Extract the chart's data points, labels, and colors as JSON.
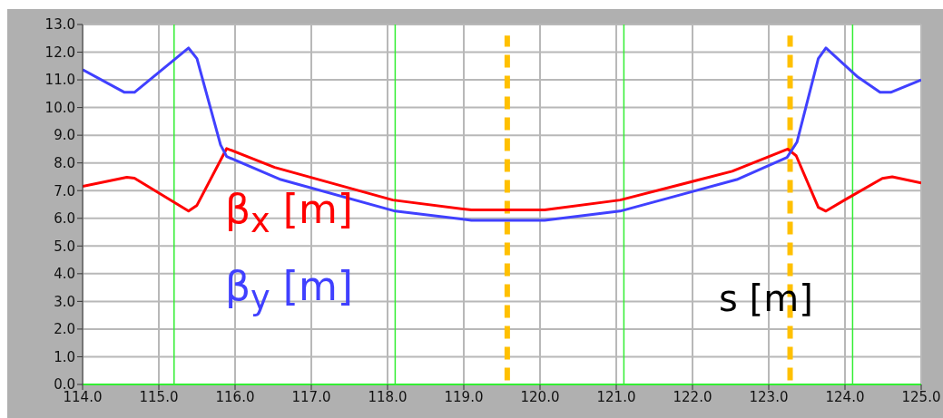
{
  "chart_data": {
    "type": "line",
    "xlabel": "s [m]",
    "xlim": [
      114,
      125
    ],
    "xticks": [
      {
        "value": 114,
        "label": "114.0"
      },
      {
        "value": 115,
        "label": "115.0"
      },
      {
        "value": 116,
        "label": "116.0"
      },
      {
        "value": 117,
        "label": "117.0"
      },
      {
        "value": 118,
        "label": "118.0"
      },
      {
        "value": 119,
        "label": "119.0"
      },
      {
        "value": 120,
        "label": "120.0"
      },
      {
        "value": 121,
        "label": "121.0"
      },
      {
        "value": 122,
        "label": "122.0"
      },
      {
        "value": 123,
        "label": "123.0"
      },
      {
        "value": 124,
        "label": "124.0"
      },
      {
        "value": 125,
        "label": "125.0"
      }
    ],
    "ylim": [
      0,
      13
    ],
    "yticks": [
      {
        "value": 0,
        "label": "0.0"
      },
      {
        "value": 1,
        "label": "1.0"
      },
      {
        "value": 2,
        "label": "2.0"
      },
      {
        "value": 3,
        "label": "3.0"
      },
      {
        "value": 4,
        "label": "4.0"
      },
      {
        "value": 5,
        "label": "5.0"
      },
      {
        "value": 6,
        "label": "6.0"
      },
      {
        "value": 7,
        "label": "7.0"
      },
      {
        "value": 8,
        "label": "8.0"
      },
      {
        "value": 9,
        "label": "9.0"
      },
      {
        "value": 10,
        "label": "10.0"
      },
      {
        "value": 11,
        "label": "11.0"
      },
      {
        "value": 12,
        "label": "12.0"
      },
      {
        "value": 13,
        "label": "13.0"
      }
    ],
    "grid": true,
    "legend": false,
    "series": [
      {
        "name": "β$_{x}$ [m]",
        "color": "#ff0000",
        "x": [
          114.0,
          114.58,
          114.68,
          115.39,
          115.5,
          115.89,
          116.52,
          118.07,
          119.1,
          120.06,
          121.05,
          122.52,
          123.25,
          123.36,
          123.65,
          123.75,
          124.02,
          124.49,
          124.62,
          125.0
        ],
        "values": [
          7.15,
          7.48,
          7.45,
          6.26,
          6.47,
          8.52,
          7.84,
          6.66,
          6.3,
          6.3,
          6.66,
          7.7,
          8.5,
          8.26,
          6.4,
          6.26,
          6.7,
          7.44,
          7.5,
          7.28
        ]
      },
      {
        "name": "β$_{y}$ [m]",
        "color": "#4040ff",
        "x": [
          114.0,
          114.55,
          114.68,
          115.39,
          115.5,
          115.81,
          115.89,
          116.6,
          118.1,
          119.1,
          120.06,
          121.05,
          122.58,
          123.24,
          123.37,
          123.65,
          123.75,
          124.17,
          124.46,
          124.6,
          125.0
        ],
        "values": [
          11.37,
          10.55,
          10.55,
          12.15,
          11.77,
          8.65,
          8.23,
          7.4,
          6.26,
          5.93,
          5.93,
          6.26,
          7.4,
          8.2,
          8.75,
          11.77,
          12.15,
          11.1,
          10.55,
          10.55,
          11.0
        ]
      }
    ],
    "ref_lines": [
      {
        "axis": "x",
        "value": 115.2,
        "color": "#33ee33",
        "line_style": "solid"
      },
      {
        "axis": "x",
        "value": 118.1,
        "color": "#33ee33",
        "line_style": "solid"
      },
      {
        "axis": "x",
        "value": 121.1,
        "color": "#33ee33",
        "line_style": "solid"
      },
      {
        "axis": "x",
        "value": 124.1,
        "color": "#33ee33",
        "line_style": "solid"
      },
      {
        "axis": "x",
        "value": 119.57,
        "color": "#ffc000",
        "line_style": "dashed"
      },
      {
        "axis": "x",
        "value": 123.28,
        "color": "#ffc000",
        "line_style": "dashed"
      }
    ]
  }
}
